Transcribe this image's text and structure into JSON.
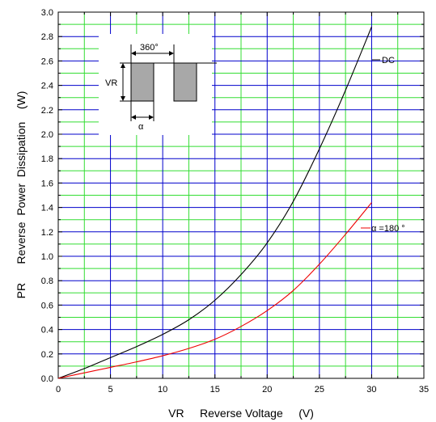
{
  "chart_data": {
    "type": "line",
    "title": "",
    "xlabel": "VR     Reverse Voltage     (V)",
    "ylabel": "PR      Reverse  Power  Dissipation    (W)",
    "xlim": [
      0,
      35
    ],
    "ylim": [
      0,
      3.0
    ],
    "x_ticks": [
      "0",
      "5",
      "10",
      "15",
      "20",
      "25",
      "30",
      "35"
    ],
    "y_ticks": [
      "0.0",
      "0.2",
      "0.4",
      "0.6",
      "0.8",
      "1.0",
      "1.2",
      "1.4",
      "1.6",
      "1.8",
      "2.0",
      "2.2",
      "2.4",
      "2.6",
      "2.8",
      "3.0"
    ],
    "grid": true,
    "colors": {
      "major_grid": "#0000cc",
      "minor_grid": "#33dd33",
      "dc_series": "#000000",
      "half_wave_series": "#ee0000"
    },
    "series": [
      {
        "name": "DC",
        "x": [
          0,
          2.5,
          5,
          7.5,
          10,
          12.5,
          15,
          17.5,
          20,
          22.5,
          25,
          27.5,
          30
        ],
        "values": [
          0,
          0.08,
          0.17,
          0.26,
          0.36,
          0.48,
          0.64,
          0.85,
          1.11,
          1.45,
          1.88,
          2.36,
          2.88
        ]
      },
      {
        "name": "α =180 °",
        "x": [
          0,
          2.5,
          5,
          7.5,
          10,
          12.5,
          15,
          17.5,
          20,
          22.5,
          25,
          27.5,
          30
        ],
        "values": [
          0,
          0.045,
          0.09,
          0.135,
          0.185,
          0.245,
          0.32,
          0.425,
          0.555,
          0.72,
          0.935,
          1.18,
          1.44
        ]
      }
    ],
    "inset": {
      "period_label": "360°",
      "amplitude_label": "VR",
      "width_label": "α"
    }
  }
}
